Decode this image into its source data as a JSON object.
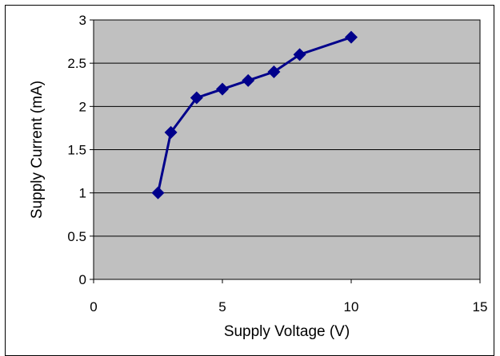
{
  "chart_data": {
    "type": "line",
    "title": "",
    "xlabel": "Supply Voltage (V)",
    "ylabel": "Supply Current (mA)",
    "xlim": [
      0,
      15
    ],
    "ylim": [
      0,
      3
    ],
    "x_ticks": [
      "0",
      "5",
      "10",
      "15"
    ],
    "y_ticks": [
      "0",
      "0.5",
      "1",
      "1.5",
      "2",
      "2.5",
      "3"
    ],
    "grid": "horizontal",
    "legend": "none",
    "plot_background": "#c0c0c0",
    "series": [
      {
        "color": "#00008b",
        "marker": "diamond",
        "x": [
          2.5,
          3,
          4,
          5,
          6,
          7,
          8,
          10
        ],
        "y": [
          1.0,
          1.7,
          2.1,
          2.2,
          2.3,
          2.4,
          2.6,
          2.8
        ]
      }
    ]
  }
}
